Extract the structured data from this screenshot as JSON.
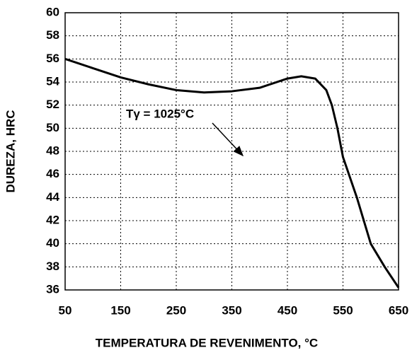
{
  "chart_data": {
    "type": "line",
    "x_label": "TEMPERATURA DE REVENIMENTO, °C",
    "y_label": "DUREZA, HRC",
    "annotation": "Tγ = 1025°C",
    "x": [
      50,
      100,
      150,
      200,
      250,
      300,
      350,
      400,
      450,
      475,
      500,
      520,
      530,
      540,
      550,
      575,
      600,
      625,
      650
    ],
    "series": [
      {
        "color": "#000000",
        "values": [
          56,
          55.2,
          54.4,
          53.8,
          53.3,
          53.1,
          53.2,
          53.5,
          54.3,
          54.5,
          54.3,
          53.3,
          52,
          50,
          47.5,
          44,
          40,
          38,
          36.2
        ]
      }
    ],
    "xlim": [
      50,
      650
    ],
    "xticks": [
      50,
      150,
      250,
      350,
      450,
      550,
      650
    ],
    "ylim": [
      36,
      60
    ],
    "yticks": [
      36,
      38,
      40,
      42,
      44,
      46,
      48,
      50,
      52,
      54,
      56,
      58,
      60
    ],
    "grid": true
  }
}
